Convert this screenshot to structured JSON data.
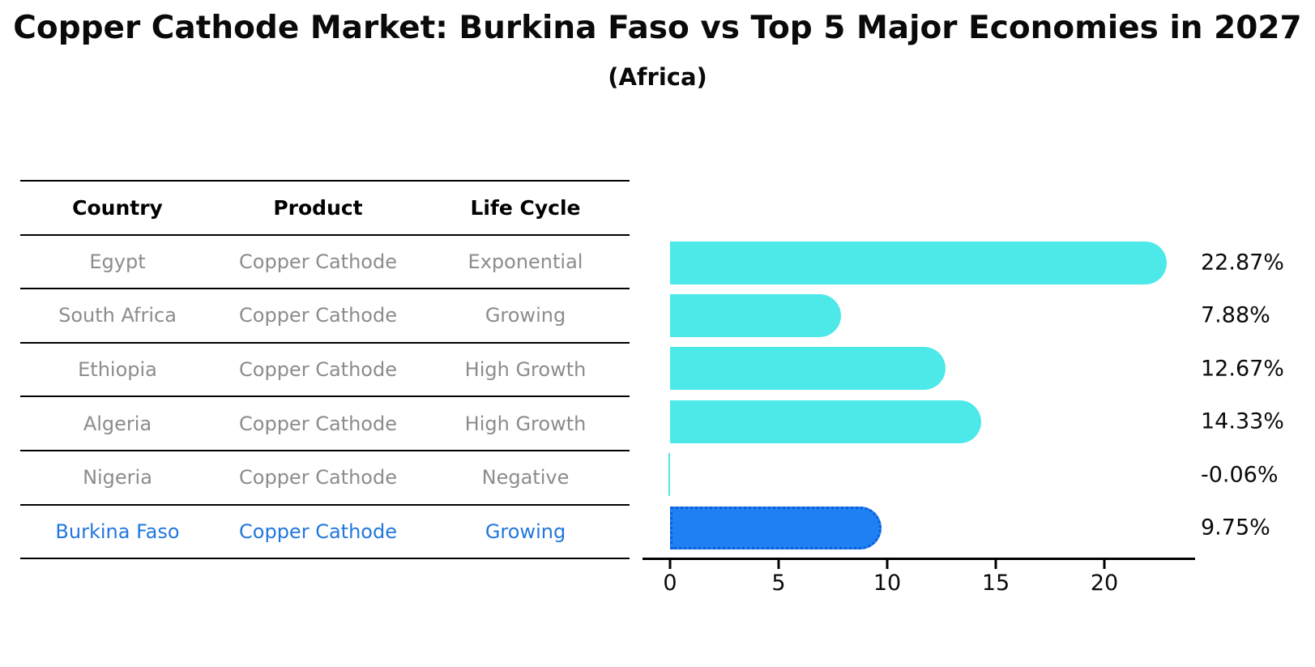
{
  "title": "Copper Cathode Market: Burkina Faso vs Top 5 Major Economies in 2027",
  "subtitle": "(Africa)",
  "table": {
    "headers": [
      "Country",
      "Product",
      "Life Cycle"
    ],
    "rows": [
      {
        "country": "Egypt",
        "product": "Copper Cathode",
        "life_cycle": "Exponential",
        "highlight": false
      },
      {
        "country": "South Africa",
        "product": "Copper Cathode",
        "life_cycle": "Growing",
        "highlight": false
      },
      {
        "country": "Ethiopia",
        "product": "Copper Cathode",
        "life_cycle": "High Growth",
        "highlight": false
      },
      {
        "country": "Algeria",
        "product": "Copper Cathode",
        "life_cycle": "High Growth",
        "highlight": false
      },
      {
        "country": "Nigeria",
        "product": "Copper Cathode",
        "life_cycle": "Negative",
        "highlight": false
      },
      {
        "country": "Burkina Faso",
        "product": "Copper Cathode",
        "life_cycle": "Growing",
        "highlight": true
      }
    ]
  },
  "chart_data": {
    "type": "bar",
    "orientation": "horizontal",
    "title": "Copper Cathode Market: Burkina Faso vs Top 5 Major Economies in 2027 (Africa)",
    "categories": [
      "Egypt",
      "South Africa",
      "Ethiopia",
      "Algeria",
      "Nigeria",
      "Burkina Faso"
    ],
    "values": [
      22.87,
      7.88,
      12.67,
      14.33,
      -0.06,
      9.75
    ],
    "labels": [
      "22.87%",
      "7.88%",
      "12.67%",
      "14.33%",
      "-0.06%",
      "9.75%"
    ],
    "xticks": [
      0,
      5,
      10,
      15,
      20
    ],
    "xlim": [
      -1.25,
      24.2
    ],
    "grid": false,
    "legend": false,
    "highlight_index": 5,
    "bar_color": "#4de9e9",
    "highlight_bar_color": "#1e80f2",
    "highlight_bar_edge_color": "#0c5ed8",
    "highlight_text_color": "#2277dd",
    "table_text_color": "#8c8c8c"
  }
}
